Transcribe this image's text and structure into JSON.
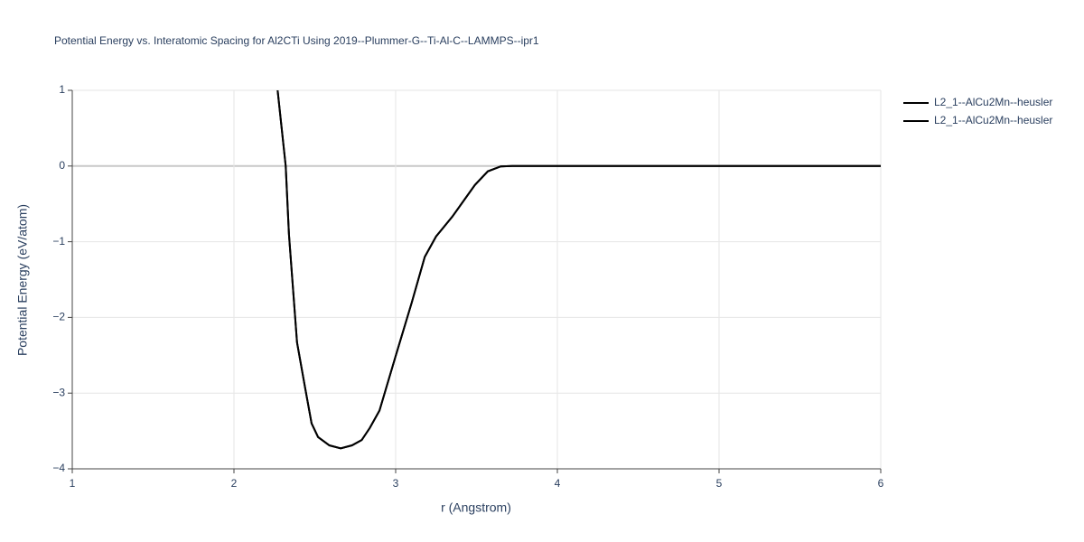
{
  "chart_data": {
    "type": "line",
    "title": "Potential Energy vs. Interatomic Spacing for Al2CTi Using 2019--Plummer-G--Ti-Al-C--LAMMPS--ipr1",
    "x_label": "r (Angstrom)",
    "y_label": "Potential Energy (eV/atom)",
    "x": [
      2.27,
      2.32,
      2.34,
      2.39,
      2.44,
      2.48,
      2.52,
      2.59,
      2.66,
      2.73,
      2.79,
      2.84,
      2.9,
      3.0,
      3.1,
      3.18,
      3.25,
      3.35,
      3.49,
      3.57,
      3.65,
      3.72,
      4,
      5,
      6
    ],
    "series": [
      {
        "name": "L2_1--AlCu2Mn--heusler",
        "color": "#000000",
        "values": [
          1,
          0,
          -0.9,
          -2.33,
          -2.93,
          -3.4,
          -3.58,
          -3.69,
          -3.73,
          -3.69,
          -3.62,
          -3.46,
          -3.23,
          -2.51,
          -1.8,
          -1.2,
          -0.93,
          -0.67,
          -0.25,
          -0.07,
          -0.005,
          0,
          0,
          0,
          0
        ]
      },
      {
        "name": "L2_1--AlCu2Mn--heusler",
        "color": "#000000",
        "values": [
          1,
          0,
          -0.9,
          -2.33,
          -2.93,
          -3.4,
          -3.58,
          -3.69,
          -3.73,
          -3.69,
          -3.62,
          -3.46,
          -3.23,
          -2.51,
          -1.8,
          -1.2,
          -0.93,
          -0.67,
          -0.25,
          -0.07,
          -0.005,
          0,
          0,
          0,
          0
        ]
      }
    ],
    "xlim": [
      1,
      6
    ],
    "ylim": [
      -4,
      1
    ],
    "xticks": [
      1,
      2,
      3,
      4,
      5,
      6
    ],
    "yticks": [
      {
        "value": -4,
        "label": "−4"
      },
      {
        "value": -3,
        "label": "−3"
      },
      {
        "value": -2,
        "label": "−2"
      },
      {
        "value": -1,
        "label": "−1"
      },
      0,
      1
    ],
    "grid": true,
    "legend": "top-right"
  }
}
